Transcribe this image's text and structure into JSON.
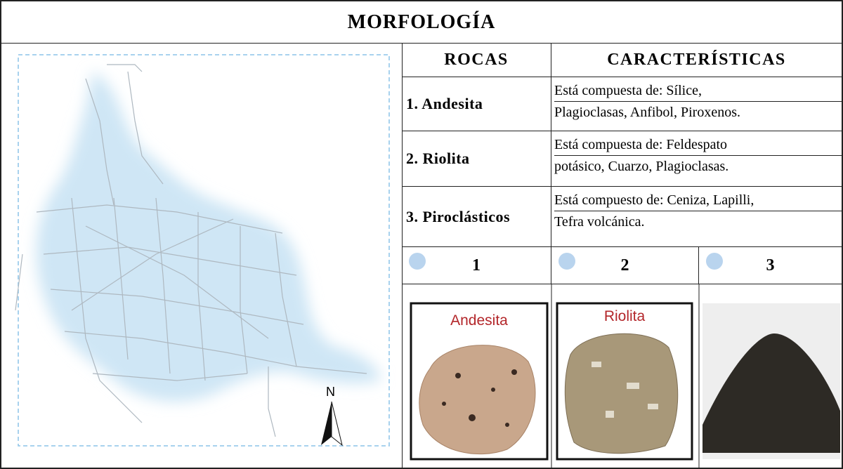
{
  "title": "MORFOLOGÍA",
  "map": {
    "north": "N"
  },
  "table": {
    "headers": [
      "ROCAS",
      "CARACTERÍSTICAS"
    ],
    "rows": [
      {
        "rock": "1. Andesita",
        "description": [
          "Está compuesta de: Sílice,",
          "Plagioclasas, Anfibol, Piroxenos."
        ]
      },
      {
        "rock": "2. Riolita",
        "description": [
          "Está compuesta de: Feldespato",
          "potásico, Cuarzo, Plagioclasas."
        ]
      },
      {
        "rock": "3. Piroclásticos",
        "description": [
          "Está compuesto de: Ceniza, Lapilli,",
          "Tefra volcánica."
        ]
      }
    ],
    "samples": [
      {
        "number": "1",
        "image_label": "Andesita"
      },
      {
        "number": "2",
        "image_label": "Riolita"
      },
      {
        "number": "3"
      }
    ]
  }
}
